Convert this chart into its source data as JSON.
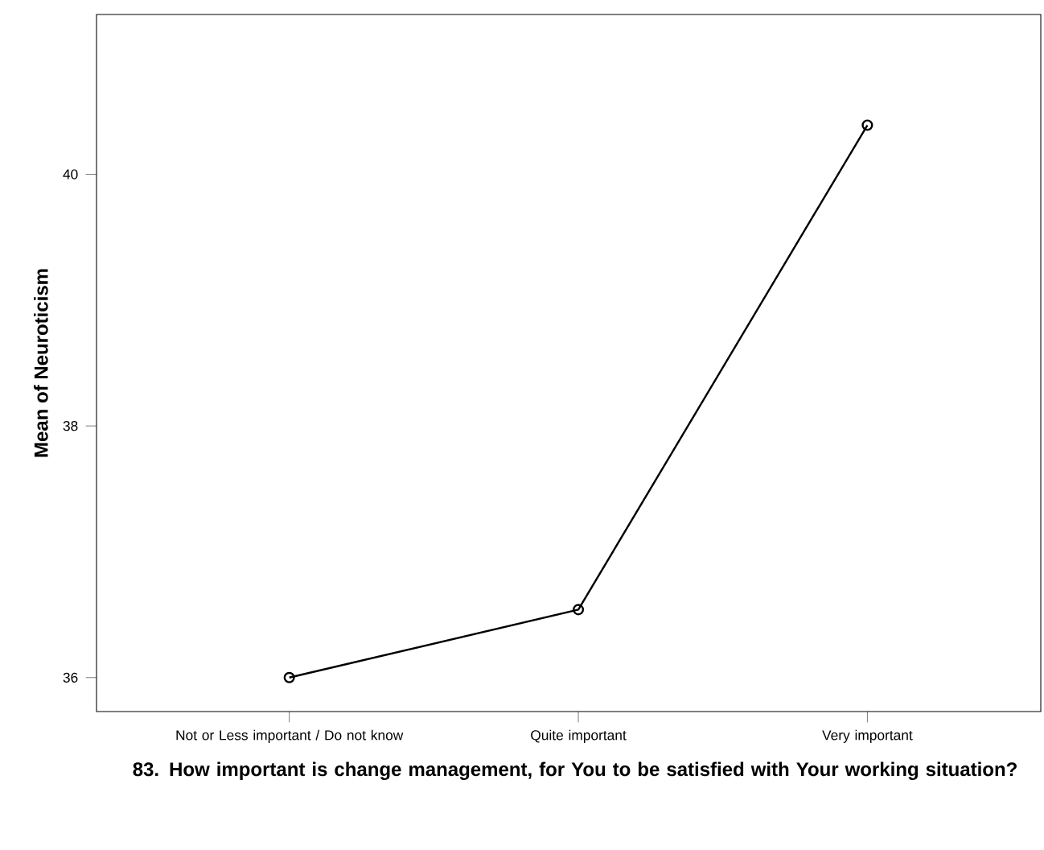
{
  "chart_data": {
    "type": "line",
    "xlabel": "83. How important is change management, for You to be satisfied with Your working situation?",
    "ylabel": "Mean of Neuroticism",
    "categories": [
      "Not or Less important / Do not know",
      "Quite important",
      "Very important"
    ],
    "values": [
      36.0,
      36.54,
      40.39
    ],
    "color": "#000000",
    "ylim": [
      35.73,
      41.27
    ],
    "yticks": [
      36,
      38,
      40
    ],
    "marker": "circle",
    "grid": false
  }
}
